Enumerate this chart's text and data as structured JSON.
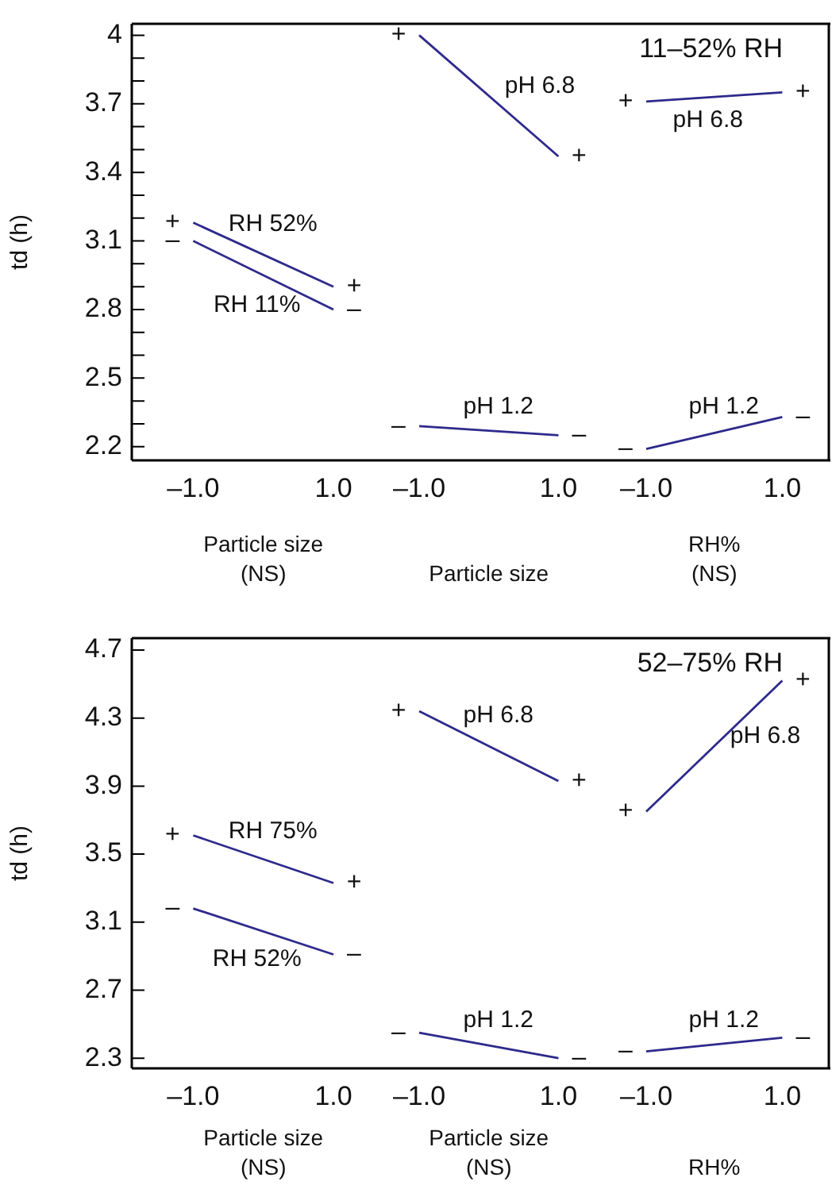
{
  "chart_data": [
    {
      "type": "line",
      "xlabel": "Particle size\n(NS)",
      "ylabel": "td (h)",
      "categories": [
        "–1.0",
        "1.0"
      ],
      "ylim": [
        2.14,
        4.05
      ],
      "yticks": [
        2.2,
        {
          "value": 2.3,
          "label": null
        },
        {
          "value": 2.4,
          "label": null
        },
        2.5,
        {
          "value": 2.6,
          "label": null
        },
        {
          "value": 2.7,
          "label": null
        },
        2.8,
        {
          "value": 2.9,
          "label": null
        },
        {
          "value": 3.0,
          "label": null
        },
        3.1,
        {
          "value": 3.2,
          "label": null
        },
        {
          "value": 3.3,
          "label": null
        },
        3.4,
        {
          "value": 3.5,
          "label": null
        },
        {
          "value": 3.6,
          "label": null
        },
        3.7,
        {
          "value": 3.8,
          "label": null
        },
        {
          "value": 3.9,
          "label": null
        },
        4
      ],
      "series": [
        {
          "name": "RH 52%",
          "color": "#2e2a8c",
          "values": [
            3.18,
            2.9
          ]
        },
        {
          "name": "RH 11%",
          "color": "#2e2a8c",
          "values": [
            3.1,
            2.8
          ]
        }
      ],
      "annotations": [
        "+",
        "+",
        "–",
        "–"
      ]
    },
    {
      "type": "line",
      "xlabel": "Particle size",
      "categories": [
        "–1.0",
        "1.0"
      ],
      "ylim": [
        2.14,
        4.05
      ],
      "tick_labels": "x",
      "series": [
        {
          "name": "pH 6.8",
          "color": "#2e2a8c",
          "values": [
            4.0,
            3.47
          ]
        },
        {
          "name": "pH 1.2",
          "color": "#2e2a8c",
          "values": [
            2.29,
            2.25
          ]
        }
      ],
      "annotations": [
        "+",
        "+",
        "–",
        "–"
      ]
    },
    {
      "type": "line",
      "title": "11–52% RH",
      "xlabel": "RH%\n(NS)",
      "categories": [
        "–1.0",
        "1.0"
      ],
      "ylim": [
        2.14,
        4.05
      ],
      "tick_labels": "x",
      "series": [
        {
          "name": "pH 6.8",
          "color": "#2e2a8c",
          "values": [
            3.71,
            3.75
          ]
        },
        {
          "name": "pH 1.2",
          "color": "#2e2a8c",
          "values": [
            2.19,
            2.33
          ]
        }
      ],
      "annotations": [
        "+",
        "+",
        "–",
        "–"
      ]
    },
    {
      "type": "line",
      "xlabel": "Particle size\n(NS)",
      "ylabel": "td (h)",
      "categories": [
        "–1.0",
        "1.0"
      ],
      "ylim": [
        2.24,
        4.77
      ],
      "yticks": [
        2.3,
        2.7,
        3.1,
        3.5,
        3.9,
        4.3,
        4.7
      ],
      "series": [
        {
          "name": "RH 75%",
          "color": "#2e2a8c",
          "values": [
            3.61,
            3.33
          ]
        },
        {
          "name": "RH 52%",
          "color": "#2e2a8c",
          "values": [
            3.18,
            2.91
          ]
        }
      ],
      "annotations": [
        "+",
        "+",
        "–",
        "–"
      ]
    },
    {
      "type": "line",
      "xlabel": "Particle size\n(NS)",
      "categories": [
        "–1.0",
        "1.0"
      ],
      "ylim": [
        2.24,
        4.77
      ],
      "tick_labels": "x",
      "series": [
        {
          "name": "pH 6.8",
          "color": "#2e2a8c",
          "values": [
            4.34,
            3.93
          ]
        },
        {
          "name": "pH 1.2",
          "color": "#2e2a8c",
          "values": [
            2.45,
            2.3
          ]
        }
      ],
      "annotations": [
        "+",
        "+",
        "–",
        "–"
      ]
    },
    {
      "type": "line",
      "title": "52–75% RH",
      "xlabel": "RH%",
      "categories": [
        "–1.0",
        "1.0"
      ],
      "ylim": [
        2.24,
        4.77
      ],
      "tick_labels": "x",
      "series": [
        {
          "name": "pH 6.8",
          "color": "#2e2a8c",
          "values": [
            3.75,
            4.52
          ]
        },
        {
          "name": "pH 1.2",
          "color": "#2e2a8c",
          "values": [
            2.34,
            2.42
          ]
        }
      ],
      "annotations": [
        "+",
        "+",
        "–",
        "–"
      ]
    }
  ]
}
